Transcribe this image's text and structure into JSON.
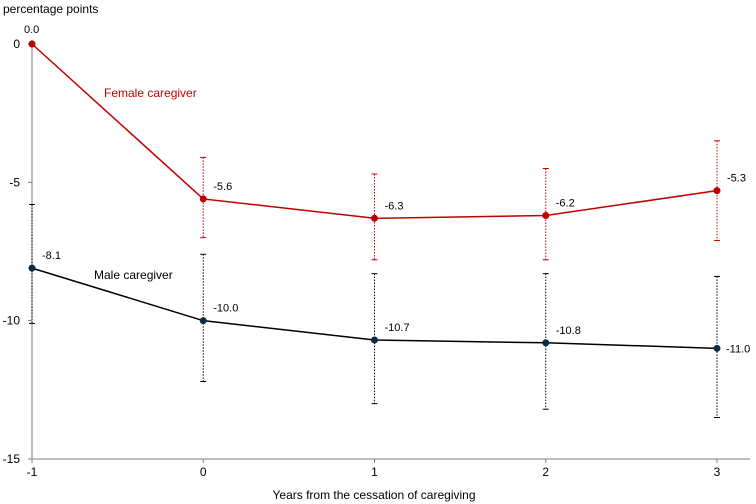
{
  "chart_data": {
    "type": "line",
    "ylabel": "percentage points",
    "xlabel": "Years from the cessation of caregiving",
    "x": [
      -1,
      0,
      1,
      2,
      3
    ],
    "ylim": [
      -15,
      0
    ],
    "yticks": [
      0,
      -5,
      -10,
      -15
    ],
    "series": [
      {
        "name": "Female caregiver",
        "color": "#c00000",
        "values": [
          0.0,
          -5.6,
          -6.3,
          -6.2,
          -5.3
        ],
        "labels": [
          "0.0",
          "-5.6",
          "-6.3",
          "-6.2",
          "-5.3"
        ],
        "ci_low": [
          null,
          -7.0,
          -7.8,
          -7.8,
          -7.1
        ],
        "ci_high": [
          null,
          -4.1,
          -4.7,
          -4.5,
          -3.5
        ]
      },
      {
        "name": "Male caregiver",
        "color": "#000000",
        "values": [
          -8.1,
          -10.0,
          -10.7,
          -10.8,
          -11.0
        ],
        "labels": [
          "-8.1",
          "-10.0",
          "-10.7",
          "-10.8",
          "-11.0"
        ],
        "ci_low": [
          -10.1,
          -12.2,
          -13.0,
          -13.2,
          -13.5
        ],
        "ci_high": [
          -5.8,
          -7.6,
          -8.3,
          -8.3,
          -8.4
        ]
      }
    ],
    "grid": false,
    "legend": "inline"
  }
}
